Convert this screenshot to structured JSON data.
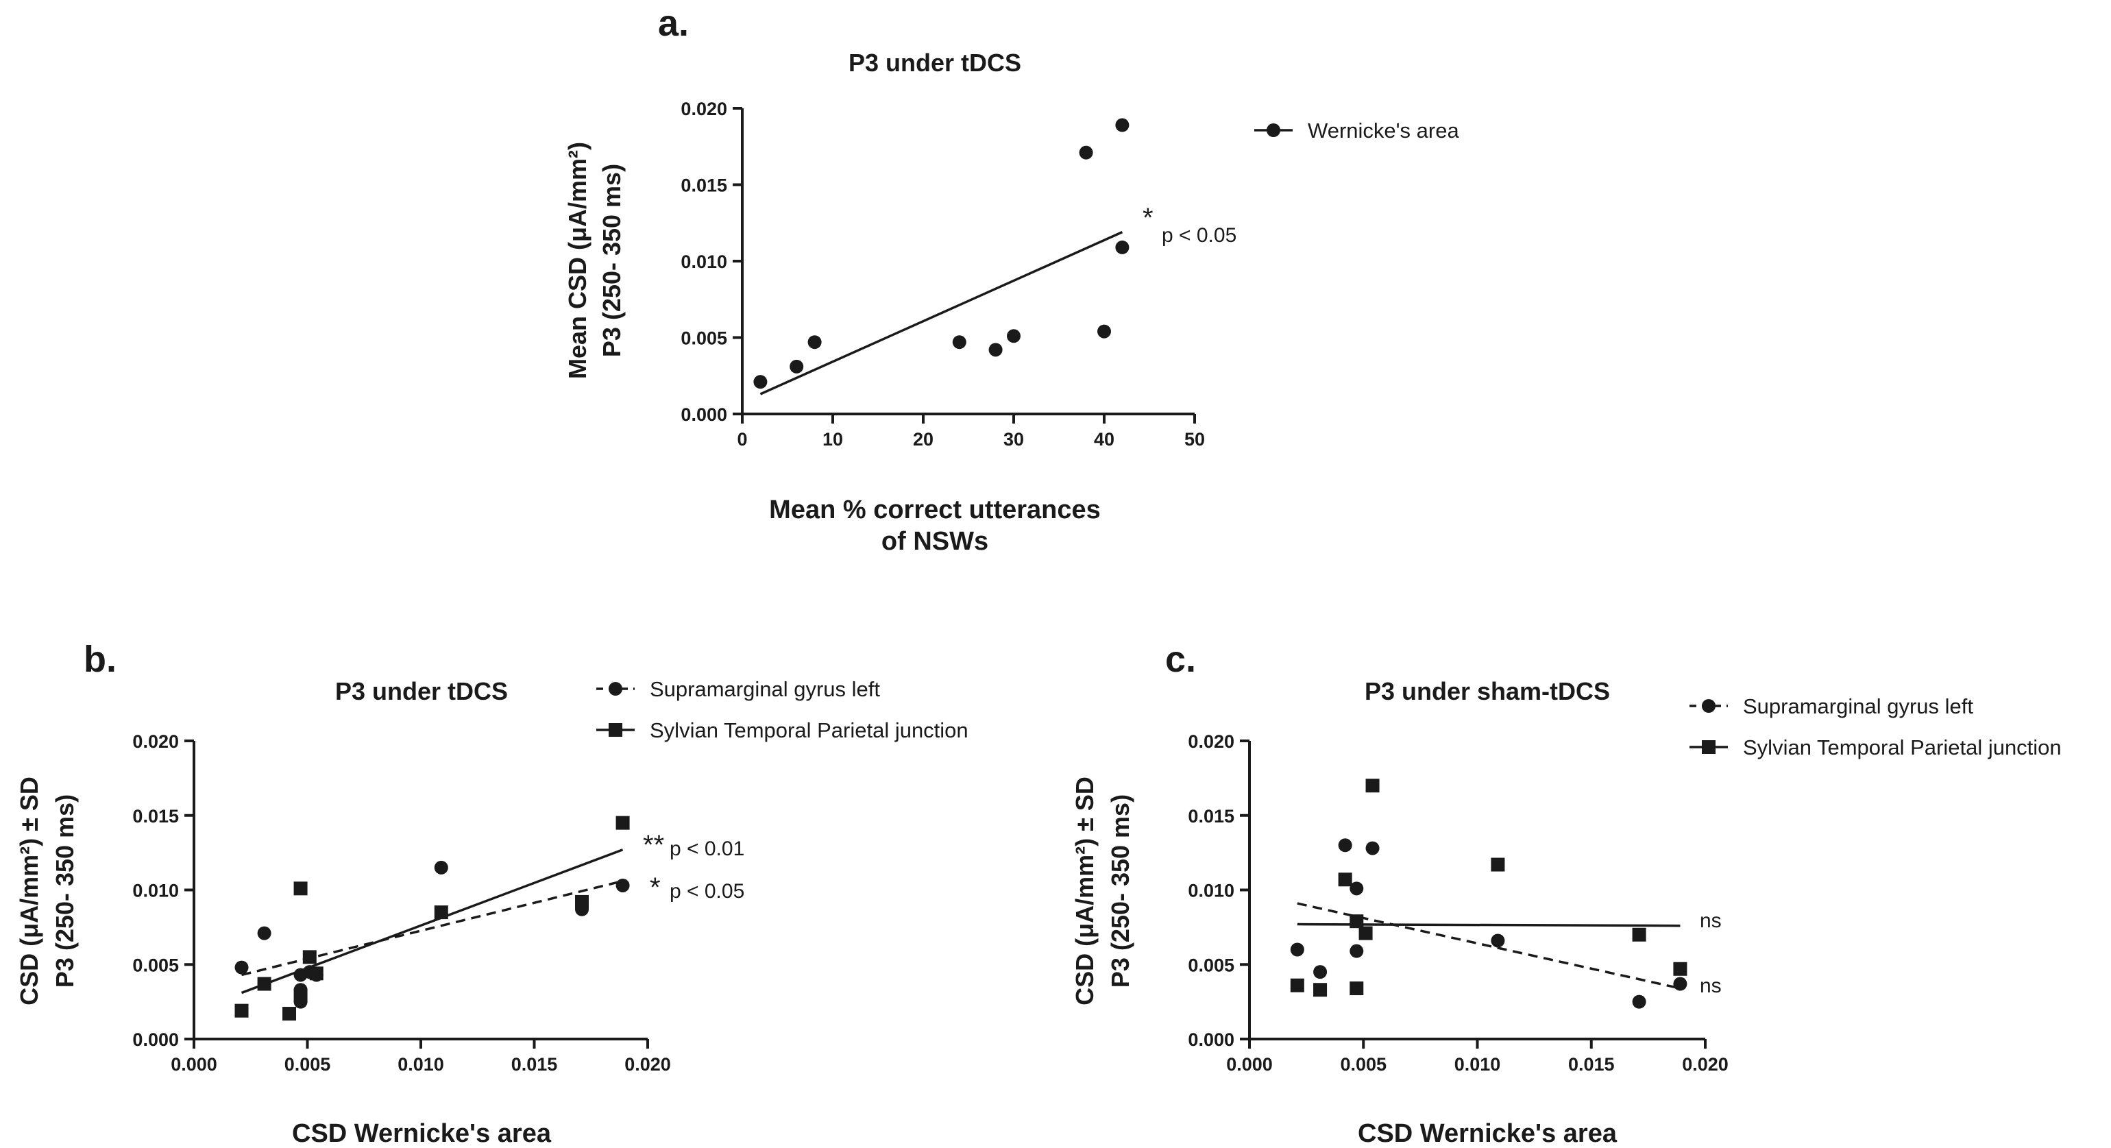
{
  "chart_data": [
    {
      "panel": "a.",
      "type": "scatter",
      "title": "P3 under tDCS",
      "xlabel": [
        "Mean % correct utterances",
        "of NSWs"
      ],
      "ylabel": [
        "Mean CSD (μA/mm²)",
        "P3 (250- 350 ms)"
      ],
      "xlim": [
        0,
        50
      ],
      "ylim": [
        0,
        0.02
      ],
      "x_ticks": [
        0,
        10,
        20,
        30,
        40,
        50
      ],
      "y_ticks": [
        "0.000",
        "0.005",
        "0.010",
        "0.015",
        "0.020"
      ],
      "x_tick_labels": [
        "0",
        "10",
        "20",
        "30",
        "40",
        "50"
      ],
      "series": [
        {
          "name": "Wernicke's area",
          "marker": "circle",
          "x": [
            2,
            6,
            8,
            24,
            28,
            30,
            38,
            40,
            42,
            42
          ],
          "y": [
            0.0021,
            0.0031,
            0.0047,
            0.0047,
            0.0042,
            0.0051,
            0.0171,
            0.0054,
            0.0189,
            0.0109
          ],
          "fit": {
            "style": "solid",
            "x": [
              2,
              42
            ],
            "y": [
              0.0013,
              0.0119
            ]
          }
        }
      ],
      "annotations": [
        {
          "star": "*",
          "text": "p < 0.05"
        }
      ]
    },
    {
      "panel": "b.",
      "type": "scatter",
      "title": "P3 under tDCS",
      "xlabel": [
        "CSD Wernicke's area"
      ],
      "ylabel": [
        "CSD (μA/mm²) ± SD",
        "P3 (250- 350 ms)"
      ],
      "xlim": [
        0,
        0.02
      ],
      "ylim": [
        0,
        0.02
      ],
      "x_ticks": [
        0,
        0.005,
        0.01,
        0.015,
        0.02
      ],
      "y_ticks": [
        "0.000",
        "0.005",
        "0.010",
        "0.015",
        "0.020"
      ],
      "x_tick_labels": [
        "0.000",
        "0.005",
        "0.010",
        "0.015",
        "0.020"
      ],
      "series": [
        {
          "name": "Supramarginal gyrus left",
          "marker": "circle",
          "x": [
            0.0021,
            0.0031,
            0.0047,
            0.0047,
            0.0047,
            0.0051,
            0.0054,
            0.0109,
            0.0171,
            0.0189
          ],
          "y": [
            0.0048,
            0.0071,
            0.0033,
            0.0025,
            0.0043,
            0.0045,
            0.0043,
            0.0115,
            0.0087,
            0.0103
          ],
          "fit": {
            "style": "dashed",
            "x": [
              0.0021,
              0.0189
            ],
            "y": [
              0.0043,
              0.0106
            ]
          }
        },
        {
          "name": "Sylvian Temporal Parietal junction",
          "marker": "square",
          "x": [
            0.0021,
            0.0031,
            0.0042,
            0.0047,
            0.0047,
            0.0051,
            0.0054,
            0.0109,
            0.0171,
            0.0189
          ],
          "y": [
            0.0019,
            0.0037,
            0.0017,
            0.0101,
            0.0029,
            0.0055,
            0.0044,
            0.0085,
            0.0092,
            0.0145
          ],
          "fit": {
            "style": "solid",
            "x": [
              0.0021,
              0.0189
            ],
            "y": [
              0.0031,
              0.0127
            ]
          }
        }
      ],
      "annotations": [
        {
          "star": "**",
          "text": "p < 0.01"
        },
        {
          "star": "*",
          "text": "p < 0.05"
        }
      ]
    },
    {
      "panel": "c.",
      "type": "scatter",
      "title": "P3 under sham-tDCS",
      "xlabel": [
        "CSD Wernicke's area"
      ],
      "ylabel": [
        "CSD (μA/mm²) ± SD",
        "P3 (250- 350 ms)"
      ],
      "xlim": [
        0,
        0.02
      ],
      "ylim": [
        0,
        0.02
      ],
      "x_ticks": [
        0,
        0.005,
        0.01,
        0.015,
        0.02
      ],
      "y_ticks": [
        "0.000",
        "0.005",
        "0.010",
        "0.015",
        "0.020"
      ],
      "x_tick_labels": [
        "0.000",
        "0.005",
        "0.010",
        "0.015",
        "0.020"
      ],
      "series": [
        {
          "name": "Supramarginal gyrus left",
          "marker": "circle",
          "x": [
            0.0021,
            0.0031,
            0.0042,
            0.0047,
            0.0047,
            0.0054,
            0.0109,
            0.0171,
            0.0189
          ],
          "y": [
            0.006,
            0.0045,
            0.013,
            0.0101,
            0.0059,
            0.0128,
            0.0066,
            0.0025,
            0.0037
          ],
          "fit": {
            "style": "dashed",
            "x": [
              0.0021,
              0.0189
            ],
            "y": [
              0.0091,
              0.0034
            ]
          }
        },
        {
          "name": "Sylvian Temporal Parietal junction",
          "marker": "square",
          "x": [
            0.0021,
            0.0031,
            0.0042,
            0.0047,
            0.0047,
            0.0051,
            0.0054,
            0.0109,
            0.0171,
            0.0189
          ],
          "y": [
            0.0036,
            0.0033,
            0.0107,
            0.0079,
            0.0034,
            0.0071,
            0.017,
            0.0117,
            0.007,
            0.0047
          ],
          "fit": {
            "style": "solid",
            "x": [
              0.0021,
              0.0189
            ],
            "y": [
              0.0077,
              0.0076
            ]
          }
        }
      ],
      "annotations": [
        {
          "star": "",
          "text": "ns"
        },
        {
          "star": "",
          "text": "ns"
        }
      ]
    }
  ]
}
